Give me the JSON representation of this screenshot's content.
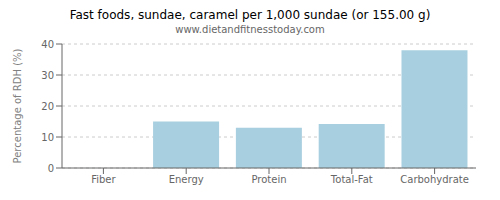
{
  "chart_data": {
    "type": "bar",
    "title": "Fast foods, sundae, caramel per 1,000 sundae (or 155.00 g)",
    "subtitle": "www.dietandfitnesstoday.com",
    "categories": [
      "Fiber",
      "Energy",
      "Protein",
      "Total-Fat",
      "Carbohydrate"
    ],
    "values": [
      0,
      15,
      13,
      14.2,
      38
    ],
    "color": "#a8cfe0",
    "ylabel": "Percentage of RDH (%)",
    "ylim": [
      0,
      40
    ],
    "yticks": [
      0,
      10,
      20,
      30,
      40
    ],
    "grid": true
  }
}
